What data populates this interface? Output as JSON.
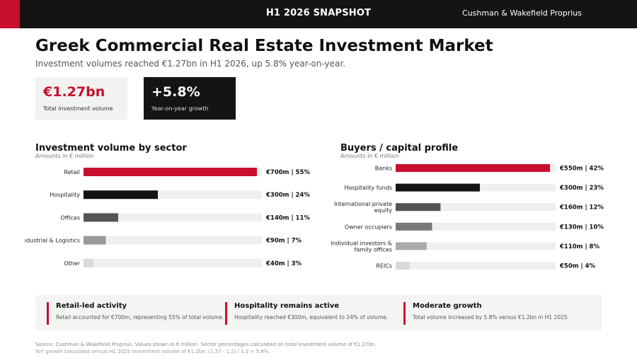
{
  "header": {
    "snapshot": "H1 2026 SNAPSHOT",
    "brand": "Cushman & Wakefield Proprius",
    "accent_color": "#c8102e"
  },
  "title": "Greek Commercial Real Estate Investment Market",
  "subtitle": "Investment volumes reached €1.27bn in H1 2026, up 5.8% year-on-year.",
  "kpis": [
    {
      "value": "€1.27bn",
      "label": "Total investment volume"
    },
    {
      "value": "+5.8%",
      "label": "Year-on-year growth"
    }
  ],
  "chart_data": [
    {
      "type": "bar",
      "orientation": "horizontal",
      "title": "Investment volume by sector",
      "unit_label": "Amounts in € million",
      "categories": [
        "Retail",
        "Hospitality",
        "Offices",
        "Industrial & Logistics",
        "Other"
      ],
      "values": [
        700,
        300,
        140,
        90,
        40
      ],
      "shares": [
        55,
        24,
        11,
        7,
        3
      ],
      "value_labels": [
        "€700m | 55%",
        "€300m | 24%",
        "€140m | 11%",
        "€90m | 7%",
        "€40m | 3%"
      ],
      "xlim": [
        0,
        720
      ],
      "colors": [
        "#c8102e",
        "#141414",
        "#555555",
        "#999999",
        "#d9d9d9"
      ],
      "track_color": "#efefed"
    },
    {
      "type": "bar",
      "orientation": "horizontal",
      "title": "Buyers / capital profile",
      "unit_label": "Amounts in € million",
      "categories": [
        "Banks",
        "Hospitality funds",
        "International private equity",
        "Owner occupiers",
        "Individual investors & family offices",
        "REICs"
      ],
      "category_lines": [
        [
          "Banks"
        ],
        [
          "Hospitality funds"
        ],
        [
          "International private",
          "equity"
        ],
        [
          "Owner occupiers"
        ],
        [
          "Individual investors &",
          "family offices"
        ],
        [
          "REICs"
        ]
      ],
      "values": [
        550,
        300,
        160,
        130,
        110,
        50
      ],
      "shares": [
        42,
        23,
        12,
        10,
        8,
        4
      ],
      "value_labels": [
        "€550m | 42%",
        "€300m | 23%",
        "€160m | 12%",
        "€130m | 10%",
        "€110m | 8%",
        "€50m | 4%"
      ],
      "xlim": [
        0,
        570
      ],
      "colors": [
        "#c8102e",
        "#141414",
        "#555555",
        "#777777",
        "#aaaaaa",
        "#d9d9d9"
      ],
      "track_color": "#efefed"
    }
  ],
  "insights": [
    {
      "heading": "Retail-led activity",
      "body": "Retail accounted for €700m, representing 55% of total volume."
    },
    {
      "heading": "Hospitality remains active",
      "body": "Hospitality reached €300m, equivalent to 24% of volume."
    },
    {
      "heading": "Moderate growth",
      "body": "Total volume increased by 5.8% versus €1.2bn in H1 2025."
    }
  ],
  "source": {
    "line1": "Source: Cushman & Wakefield Proprius. Values shown in € million. Sector percentages calculated on total investment volume of €1.27bn.",
    "line2": "YoY growth calculated versus H1 2025 investment volume of €1.2bn: (1.27 - 1.2) / 1.2 = 5.8%."
  }
}
